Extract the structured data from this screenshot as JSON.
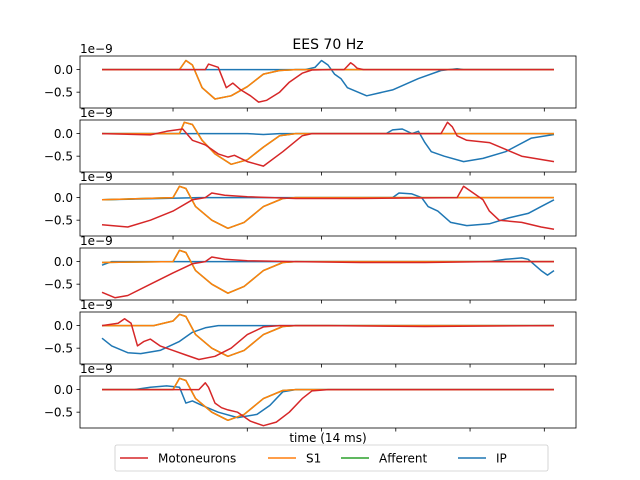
{
  "chart_data": {
    "type": "line",
    "title": "EES 70 Hz",
    "xlabel": "time (14 ms)",
    "ylabel": "",
    "scale_label": "1e−9",
    "ytick_labels": [
      "0.0",
      "−0.5"
    ],
    "ylim": [
      -0.85,
      0.3
    ],
    "xlim": [
      0,
      14
    ],
    "grid": false,
    "legend_position": "bottom-center",
    "panel_count": 6,
    "series_order": [
      "Motoneurons",
      "S1",
      "Afferent",
      "IP"
    ],
    "series_colors": {
      "Motoneurons": "#d62728",
      "S1": "#ff7f0e",
      "Afferent": "#2ca02c",
      "IP": "#1f77b4"
    },
    "legend": [
      {
        "name": "Motoneurons",
        "color": "#d62728"
      },
      {
        "name": "S1",
        "color": "#ff7f0e"
      },
      {
        "name": "Afferent",
        "color": "#2ca02c"
      },
      {
        "name": "IP",
        "color": "#1f77b4"
      }
    ],
    "panels": [
      {
        "series": [
          {
            "name": "IP",
            "x": [
              0,
              6.3,
              6.6,
              6.8,
              7.0,
              7.2,
              7.4,
              7.6,
              8.2,
              9.0,
              9.8,
              10.5,
              11.0,
              11.2,
              11.5,
              12.5,
              14
            ],
            "y": [
              0,
              0,
              0.05,
              0.2,
              0.1,
              -0.1,
              -0.2,
              -0.4,
              -0.58,
              -0.45,
              -0.2,
              -0.02,
              0.02,
              0.0,
              0,
              0,
              0
            ]
          },
          {
            "name": "Afferent",
            "x": [
              0,
              2.4,
              2.6,
              2.8,
              3.1,
              3.5,
              4.0,
              4.5,
              5.0,
              5.5,
              6.0,
              14
            ],
            "y": [
              0,
              0,
              0.2,
              0.1,
              -0.4,
              -0.65,
              -0.58,
              -0.38,
              -0.1,
              -0.02,
              0,
              0
            ]
          },
          {
            "name": "S1",
            "x": [
              0,
              2.4,
              2.6,
              2.8,
              3.1,
              3.5,
              4.0,
              4.5,
              5.0,
              5.5,
              6.0,
              14
            ],
            "y": [
              0,
              0,
              0.2,
              0.1,
              -0.4,
              -0.65,
              -0.58,
              -0.38,
              -0.1,
              -0.02,
              0,
              0
            ]
          },
          {
            "name": "Motoneurons",
            "x": [
              0,
              3.2,
              3.3,
              3.6,
              3.85,
              4.05,
              4.3,
              4.6,
              4.85,
              5.1,
              5.5,
              5.8,
              6.2,
              6.5,
              7.0,
              7.5,
              7.7,
              7.8,
              7.9,
              8.1,
              8.3,
              14
            ],
            "y": [
              0,
              0,
              0.12,
              0.05,
              -0.4,
              -0.3,
              -0.45,
              -0.58,
              -0.72,
              -0.68,
              -0.5,
              -0.28,
              -0.08,
              -0.01,
              0,
              0,
              0.15,
              0.1,
              0.03,
              0,
              0,
              0
            ]
          }
        ]
      },
      {
        "series": [
          {
            "name": "IP",
            "x": [
              0,
              4.0,
              4.5,
              5.0,
              5.5,
              6.0,
              8.8,
              9.0,
              9.3,
              9.6,
              9.8,
              10.0,
              10.2,
              10.6,
              11.2,
              11.8,
              12.5,
              13.3,
              14
            ],
            "y": [
              0,
              0,
              0,
              -0.02,
              0,
              0,
              0,
              0.08,
              0.1,
              0.0,
              0.05,
              -0.2,
              -0.4,
              -0.5,
              -0.62,
              -0.55,
              -0.4,
              -0.1,
              -0.02
            ]
          },
          {
            "name": "Afferent",
            "x": [
              0,
              2.4,
              2.55,
              2.8,
              3.1,
              3.5,
              4.0,
              4.5,
              5.0,
              5.5,
              6.0,
              14
            ],
            "y": [
              0,
              0,
              0.25,
              0.2,
              -0.15,
              -0.45,
              -0.68,
              -0.58,
              -0.3,
              -0.05,
              0,
              0
            ]
          },
          {
            "name": "S1",
            "x": [
              0,
              2.4,
              2.55,
              2.8,
              3.1,
              3.5,
              4.0,
              4.5,
              5.0,
              5.5,
              6.0,
              14
            ],
            "y": [
              0,
              0,
              0.25,
              0.2,
              -0.15,
              -0.45,
              -0.68,
              -0.58,
              -0.3,
              -0.05,
              0,
              0
            ]
          },
          {
            "name": "Motoneurons",
            "x": [
              0,
              1.5,
              2.0,
              2.5,
              2.8,
              3.0,
              3.2,
              3.6,
              3.9,
              4.1,
              4.5,
              5.0,
              5.6,
              6.2,
              6.5,
              10.5,
              10.7,
              10.85,
              11.0,
              11.3,
              12.0,
              13.0,
              14
            ],
            "y": [
              0,
              -0.03,
              0.05,
              0.1,
              -0.15,
              -0.2,
              -0.25,
              -0.45,
              -0.52,
              -0.48,
              -0.62,
              -0.72,
              -0.4,
              -0.05,
              0,
              0,
              0.25,
              0.15,
              -0.05,
              -0.15,
              -0.2,
              -0.5,
              -0.62
            ]
          }
        ]
      },
      {
        "series": [
          {
            "name": "IP",
            "x": [
              0,
              3.0,
              6.5,
              9.0,
              9.2,
              9.6,
              9.9,
              10.1,
              10.4,
              10.8,
              11.3,
              12.0,
              12.6,
              13.2,
              13.6,
              14
            ],
            "y": [
              -0.05,
              0,
              0,
              0,
              0.1,
              0.08,
              0.0,
              -0.2,
              -0.3,
              -0.55,
              -0.62,
              -0.58,
              -0.45,
              -0.35,
              -0.2,
              -0.05
            ]
          },
          {
            "name": "Afferent",
            "x": [
              0,
              2.2,
              2.4,
              2.6,
              2.9,
              3.4,
              3.9,
              4.4,
              5.0,
              5.6,
              6.0,
              14
            ],
            "y": [
              -0.05,
              0,
              0.25,
              0.2,
              -0.2,
              -0.5,
              -0.68,
              -0.55,
              -0.2,
              -0.02,
              0,
              0
            ]
          },
          {
            "name": "S1",
            "x": [
              0,
              2.2,
              2.4,
              2.6,
              2.9,
              3.4,
              3.9,
              4.4,
              5.0,
              5.6,
              6.0,
              14
            ],
            "y": [
              -0.05,
              0,
              0.25,
              0.2,
              -0.2,
              -0.5,
              -0.68,
              -0.55,
              -0.2,
              -0.02,
              0,
              0
            ]
          },
          {
            "name": "Motoneurons",
            "x": [
              0,
              0.8,
              1.5,
              2.2,
              2.8,
              3.2,
              3.4,
              3.8,
              4.5,
              6.0,
              8.0,
              11.0,
              11.2,
              11.5,
              11.8,
              12.0,
              12.3,
              13.0,
              13.6,
              14
            ],
            "y": [
              -0.6,
              -0.65,
              -0.5,
              -0.3,
              -0.05,
              0,
              0.1,
              0.05,
              0.02,
              -0.02,
              -0.02,
              0,
              0.25,
              0.1,
              -0.05,
              -0.3,
              -0.5,
              -0.55,
              -0.65,
              -0.7
            ]
          }
        ]
      },
      {
        "series": [
          {
            "name": "IP",
            "x": [
              0,
              0.3,
              0.8,
              3.0,
              6.0,
              9.0,
              12.0,
              12.5,
              13.0,
              13.2,
              13.6,
              13.8,
              14
            ],
            "y": [
              -0.08,
              0,
              0,
              0,
              0,
              0,
              0,
              0.05,
              0.08,
              0.05,
              -0.2,
              -0.3,
              -0.2
            ]
          },
          {
            "name": "Afferent",
            "x": [
              0,
              2.2,
              2.4,
              2.6,
              2.9,
              3.4,
              3.9,
              4.4,
              5.0,
              5.6,
              6.0,
              14
            ],
            "y": [
              -0.02,
              0,
              0.25,
              0.2,
              -0.2,
              -0.5,
              -0.7,
              -0.55,
              -0.2,
              -0.02,
              0,
              0
            ]
          },
          {
            "name": "S1",
            "x": [
              0,
              2.2,
              2.4,
              2.6,
              2.9,
              3.4,
              3.9,
              4.4,
              5.0,
              5.6,
              6.0,
              14
            ],
            "y": [
              -0.02,
              0,
              0.25,
              0.2,
              -0.2,
              -0.5,
              -0.7,
              -0.55,
              -0.2,
              -0.02,
              0,
              0
            ]
          },
          {
            "name": "Motoneurons",
            "x": [
              0,
              0.4,
              0.8,
              1.5,
              2.2,
              2.8,
              3.2,
              3.4,
              3.8,
              4.5,
              6.0,
              8.0,
              10.0,
              12.0,
              14
            ],
            "y": [
              -0.68,
              -0.8,
              -0.75,
              -0.5,
              -0.25,
              -0.05,
              0,
              0.1,
              0.05,
              0.02,
              0,
              -0.02,
              -0.02,
              0,
              0
            ]
          }
        ]
      },
      {
        "series": [
          {
            "name": "IP",
            "x": [
              0,
              0.3,
              0.8,
              1.2,
              1.8,
              2.4,
              2.8,
              3.2,
              3.6,
              3.8,
              4.2,
              6.0,
              14
            ],
            "y": [
              -0.28,
              -0.45,
              -0.6,
              -0.62,
              -0.55,
              -0.35,
              -0.15,
              -0.05,
              0,
              0,
              0,
              0,
              0
            ]
          },
          {
            "name": "Afferent",
            "x": [
              0,
              1.2,
              1.6,
              2.2,
              2.4,
              2.6,
              2.9,
              3.4,
              3.9,
              4.4,
              5.0,
              5.6,
              6.0,
              14
            ],
            "y": [
              0,
              0,
              0,
              0.1,
              0.25,
              0.2,
              -0.2,
              -0.5,
              -0.68,
              -0.55,
              -0.2,
              -0.02,
              0,
              0
            ]
          },
          {
            "name": "S1",
            "x": [
              0,
              1.2,
              1.6,
              2.2,
              2.4,
              2.6,
              2.9,
              3.4,
              3.9,
              4.4,
              5.0,
              5.6,
              6.0,
              14
            ],
            "y": [
              0,
              0,
              0,
              0.1,
              0.25,
              0.2,
              -0.2,
              -0.5,
              -0.68,
              -0.55,
              -0.2,
              -0.02,
              0,
              0
            ]
          },
          {
            "name": "Motoneurons",
            "x": [
              0,
              0.5,
              0.7,
              0.9,
              1.1,
              1.3,
              1.5,
              1.8,
              2.2,
              2.6,
              3.0,
              3.5,
              4.0,
              4.5,
              5.0,
              5.5,
              7.0,
              10.0,
              14
            ],
            "y": [
              0,
              0.05,
              0.15,
              0.05,
              -0.45,
              -0.35,
              -0.3,
              -0.45,
              -0.55,
              -0.65,
              -0.75,
              -0.68,
              -0.5,
              -0.2,
              -0.03,
              0,
              0,
              -0.02,
              0
            ]
          }
        ]
      },
      {
        "series": [
          {
            "name": "IP",
            "x": [
              0,
              1.0,
              1.5,
              2.0,
              2.4,
              2.6,
              2.8,
              3.1,
              3.6,
              4.2,
              4.8,
              5.2,
              5.6,
              6.0,
              14
            ],
            "y": [
              0,
              0,
              0.05,
              0.08,
              0.05,
              -0.3,
              -0.25,
              -0.35,
              -0.5,
              -0.62,
              -0.55,
              -0.35,
              -0.05,
              0,
              0
            ]
          },
          {
            "name": "Afferent",
            "x": [
              0,
              2.2,
              2.4,
              2.6,
              2.9,
              3.4,
              3.9,
              4.4,
              5.0,
              5.6,
              6.0,
              14
            ],
            "y": [
              0,
              0,
              0.25,
              0.2,
              -0.2,
              -0.5,
              -0.68,
              -0.55,
              -0.2,
              -0.02,
              0,
              0
            ]
          },
          {
            "name": "S1",
            "x": [
              0,
              2.2,
              2.4,
              2.6,
              2.9,
              3.4,
              3.9,
              4.4,
              5.0,
              5.6,
              6.0,
              14
            ],
            "y": [
              0,
              0,
              0.25,
              0.2,
              -0.2,
              -0.5,
              -0.68,
              -0.55,
              -0.2,
              -0.02,
              0,
              0
            ]
          },
          {
            "name": "Motoneurons",
            "x": [
              0,
              3.0,
              3.2,
              3.3,
              3.5,
              3.7,
              3.9,
              4.2,
              4.6,
              5.0,
              5.4,
              5.8,
              6.2,
              6.5,
              7.0,
              14
            ],
            "y": [
              0,
              0,
              0.15,
              0.05,
              -0.3,
              -0.4,
              -0.45,
              -0.5,
              -0.7,
              -0.8,
              -0.72,
              -0.5,
              -0.2,
              -0.03,
              0,
              0
            ]
          }
        ]
      }
    ]
  }
}
